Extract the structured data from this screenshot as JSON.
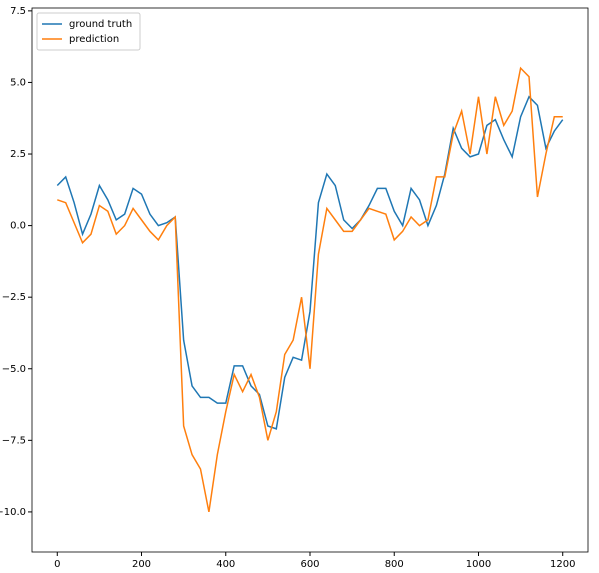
{
  "chart_data": {
    "type": "line",
    "x": [
      0,
      20,
      40,
      60,
      80,
      100,
      120,
      140,
      160,
      180,
      200,
      220,
      240,
      260,
      280,
      300,
      320,
      340,
      360,
      380,
      400,
      420,
      440,
      460,
      480,
      500,
      520,
      540,
      560,
      580,
      600,
      620,
      640,
      660,
      680,
      700,
      720,
      740,
      760,
      780,
      800,
      820,
      840,
      860,
      880,
      900,
      920,
      940,
      960,
      980,
      1000,
      1020,
      1040,
      1060,
      1080,
      1100,
      1120,
      1140,
      1160,
      1180,
      1200
    ],
    "series": [
      {
        "name": "ground truth",
        "color": "#1f77b4",
        "values": [
          1.4,
          1.7,
          0.8,
          -0.3,
          0.4,
          1.4,
          0.9,
          0.2,
          0.4,
          1.3,
          1.1,
          0.4,
          0.0,
          0.1,
          0.3,
          -4.0,
          -5.6,
          -6.0,
          -6.0,
          -6.2,
          -6.2,
          -4.9,
          -4.9,
          -5.6,
          -5.9,
          -7.0,
          -7.1,
          -5.3,
          -4.6,
          -4.7,
          -3.0,
          0.8,
          1.8,
          1.4,
          0.2,
          -0.1,
          0.2,
          0.7,
          1.3,
          1.3,
          0.5,
          0.0,
          1.3,
          0.9,
          0.0,
          0.7,
          1.8,
          3.4,
          2.7,
          2.4,
          2.5,
          3.5,
          3.7,
          3.0,
          2.4,
          3.8,
          4.5,
          4.2,
          2.7,
          3.3,
          3.7
        ]
      },
      {
        "name": "prediction",
        "color": "#ff7f0e",
        "values": [
          0.9,
          0.8,
          0.1,
          -0.6,
          -0.3,
          0.7,
          0.5,
          -0.3,
          0.0,
          0.6,
          0.2,
          -0.2,
          -0.5,
          0.0,
          0.3,
          -7.0,
          -8.0,
          -8.5,
          -10.0,
          -8.0,
          -6.5,
          -5.2,
          -5.8,
          -5.2,
          -6.0,
          -7.5,
          -6.5,
          -4.5,
          -4.0,
          -2.5,
          -5.0,
          -1.0,
          0.6,
          0.2,
          -0.2,
          -0.2,
          0.2,
          0.6,
          0.5,
          0.4,
          -0.5,
          -0.2,
          0.3,
          0.0,
          0.2,
          1.7,
          1.7,
          3.2,
          4.0,
          2.5,
          4.5,
          2.5,
          4.5,
          3.5,
          4.0,
          5.5,
          5.2,
          1.0,
          2.5,
          3.8,
          3.8
        ]
      }
    ],
    "xlim": [
      -60,
      1260
    ],
    "ylim": [
      -11.4,
      7.6
    ],
    "xticks": [
      0,
      200,
      400,
      600,
      800,
      1000,
      1200
    ],
    "yticks": [
      7.5,
      {
        "value": 5,
        "label": "5.0"
      },
      {
        "value": 2.5,
        "label": "2.5"
      },
      {
        "value": 0,
        "label": "0.0"
      },
      {
        "value": -2.5,
        "label": "−2.5"
      },
      {
        "value": -5,
        "label": "−5.0"
      },
      {
        "value": -7.5,
        "label": "−7.5"
      },
      {
        "value": -10,
        "label": "−10.0"
      }
    ],
    "legend": "upper left"
  }
}
